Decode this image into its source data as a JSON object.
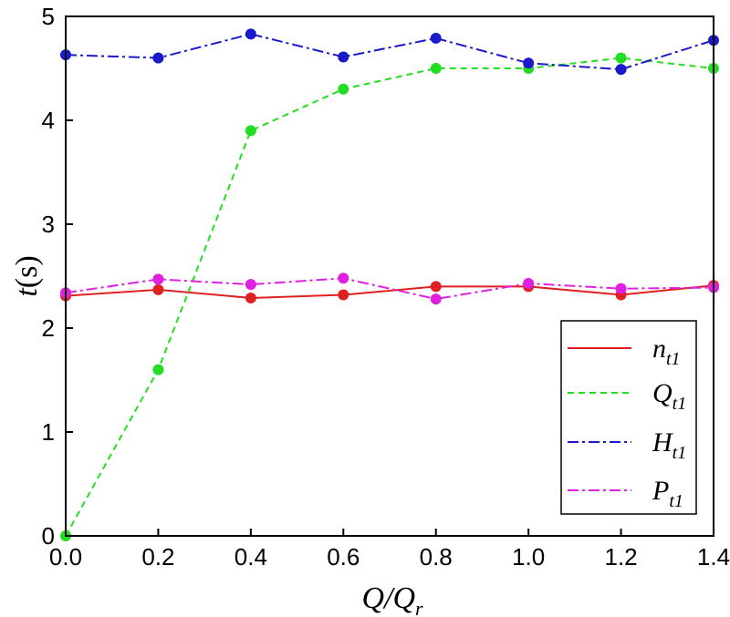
{
  "chart_data": {
    "type": "line",
    "title": "",
    "xlabel": {
      "main": "Q/Q",
      "sub": "r"
    },
    "ylabel": {
      "main": "t",
      "unit": "(s)"
    },
    "xlim": [
      0,
      1.4
    ],
    "ylim": [
      0,
      5
    ],
    "x_ticks": [
      "0.0",
      "0.2",
      "0.4",
      "0.6",
      "0.8",
      "1.0",
      "1.2",
      "1.4"
    ],
    "y_ticks": [
      "0",
      "1",
      "2",
      "3",
      "4",
      "5"
    ],
    "legend_position": "bottom-right",
    "series": [
      {
        "name": "n",
        "sub": "t1",
        "color": "#e02020",
        "dash": "solid",
        "x": [
          0.0,
          0.2,
          0.4,
          0.6,
          0.8,
          1.0,
          1.2,
          1.4
        ],
        "y": [
          2.31,
          2.37,
          2.29,
          2.32,
          2.4,
          2.4,
          2.32,
          2.41
        ]
      },
      {
        "name": "Q",
        "sub": "t1",
        "color": "#22dd22",
        "dash": "dashed",
        "x": [
          0.0,
          0.2,
          0.4,
          0.6,
          0.8,
          1.0,
          1.2,
          1.4
        ],
        "y": [
          0.0,
          1.6,
          3.9,
          4.3,
          4.5,
          4.5,
          4.6,
          4.5
        ]
      },
      {
        "name": "H",
        "sub": "t1",
        "color": "#1a1acc",
        "dash": "dashdot",
        "x": [
          0.0,
          0.2,
          0.4,
          0.6,
          0.8,
          1.0,
          1.2,
          1.4
        ],
        "y": [
          4.63,
          4.6,
          4.83,
          4.61,
          4.79,
          4.55,
          4.49,
          4.77
        ]
      },
      {
        "name": "P",
        "sub": "t1",
        "color": "#e020e0",
        "dash": "dashdot",
        "x": [
          0.0,
          0.2,
          0.4,
          0.6,
          0.8,
          1.0,
          1.2,
          1.4
        ],
        "y": [
          2.34,
          2.47,
          2.42,
          2.48,
          2.28,
          2.43,
          2.38,
          2.39
        ]
      }
    ]
  }
}
